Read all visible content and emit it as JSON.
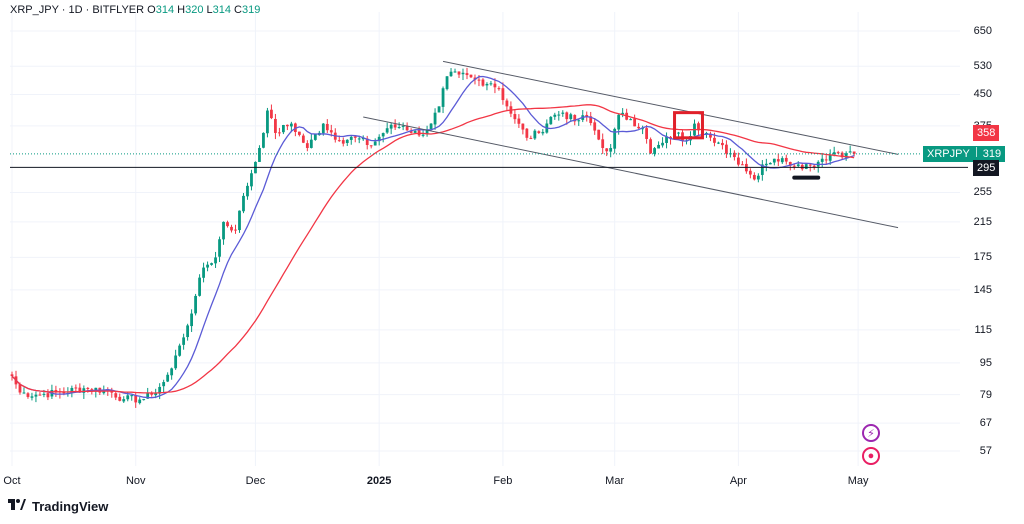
{
  "legend": {
    "symbol_line": "XRP_JPY · 1D · BITFLYER",
    "open_label": "O",
    "open": "314",
    "high_label": "H",
    "high": "320",
    "low_label": "L",
    "low": "314",
    "close_label": "C",
    "close": "319"
  },
  "brand": {
    "name": "TradingView",
    "icon": "tradingview-logo-icon"
  },
  "colors": {
    "up": "#089981",
    "down": "#f23645",
    "ma_fast": "#5b5bd6",
    "ma_slow": "#f23645",
    "box": "#e0202a"
  },
  "price_tags": {
    "symbol": "XRPJPY",
    "current": "319",
    "ma": "358",
    "support": "295"
  },
  "icons": [
    "lightning-icon",
    "record-icon"
  ],
  "chart_data": {
    "type": "candlestick",
    "title": "XRP_JPY · 1D · BITFLYER",
    "scale": "log",
    "ylim": [
      50,
      720
    ],
    "y_ticks": [
      650,
      530,
      450,
      375,
      255,
      215,
      175,
      145,
      115,
      95,
      79,
      67,
      57
    ],
    "x_ticks": [
      {
        "label": "Oct",
        "day": 0
      },
      {
        "label": "Nov",
        "day": 31
      },
      {
        "label": "Dec",
        "day": 61
      },
      {
        "label": "2025",
        "day": 92,
        "bold": true
      },
      {
        "label": "Feb",
        "day": 123
      },
      {
        "label": "Mar",
        "day": 151
      },
      {
        "label": "Apr",
        "day": 182
      },
      {
        "label": "May",
        "day": 212
      }
    ],
    "x_range_days": [
      -0.5,
      227
    ],
    "close_anchors": [
      [
        0,
        88
      ],
      [
        2,
        80
      ],
      [
        6,
        79
      ],
      [
        12,
        80
      ],
      [
        18,
        82
      ],
      [
        24,
        81
      ],
      [
        28,
        77
      ],
      [
        33,
        77
      ],
      [
        35,
        79
      ],
      [
        38,
        85
      ],
      [
        40,
        92
      ],
      [
        42,
        105
      ],
      [
        44,
        118
      ],
      [
        46,
        140
      ],
      [
        48,
        165
      ],
      [
        51,
        175
      ],
      [
        53,
        215
      ],
      [
        56,
        205
      ],
      [
        58,
        250
      ],
      [
        60,
        285
      ],
      [
        62,
        330
      ],
      [
        64,
        410
      ],
      [
        66,
        360
      ],
      [
        70,
        380
      ],
      [
        74,
        330
      ],
      [
        78,
        380
      ],
      [
        82,
        345
      ],
      [
        86,
        350
      ],
      [
        90,
        335
      ],
      [
        94,
        370
      ],
      [
        98,
        375
      ],
      [
        102,
        355
      ],
      [
        105,
        380
      ],
      [
        107,
        420
      ],
      [
        109,
        500
      ],
      [
        112,
        505
      ],
      [
        116,
        490
      ],
      [
        120,
        480
      ],
      [
        122,
        465
      ],
      [
        124,
        420
      ],
      [
        126,
        390
      ],
      [
        129,
        350
      ],
      [
        132,
        360
      ],
      [
        135,
        395
      ],
      [
        138,
        405
      ],
      [
        141,
        385
      ],
      [
        144,
        395
      ],
      [
        146,
        365
      ],
      [
        148,
        330
      ],
      [
        150,
        330
      ],
      [
        152,
        400
      ],
      [
        155,
        390
      ],
      [
        158,
        370
      ],
      [
        160,
        320
      ],
      [
        163,
        340
      ],
      [
        166,
        360
      ],
      [
        169,
        345
      ],
      [
        171,
        380
      ],
      [
        174,
        360
      ],
      [
        176,
        340
      ],
      [
        180,
        320
      ],
      [
        183,
        300
      ],
      [
        186,
        275
      ],
      [
        188,
        300
      ],
      [
        191,
        310
      ],
      [
        194,
        305
      ],
      [
        197,
        300
      ],
      [
        200,
        298
      ],
      [
        203,
        310
      ],
      [
        206,
        322
      ],
      [
        209,
        320
      ],
      [
        211,
        319
      ]
    ],
    "moving_averages": [
      {
        "name": "MA fast",
        "color": "#5b5bd6",
        "window": 10
      },
      {
        "name": "MA slow",
        "color": "#f23645",
        "window": 40
      }
    ],
    "annotations": [
      {
        "type": "trendline",
        "name": "channel-upper",
        "from": [
          108,
          545
        ],
        "to": [
          222,
          318
        ]
      },
      {
        "type": "trendline",
        "name": "channel-lower",
        "from": [
          88,
          395
        ],
        "to": [
          222,
          208
        ]
      },
      {
        "type": "hline",
        "name": "support-line",
        "price": 295
      },
      {
        "type": "box",
        "name": "resistance-box",
        "from": [
          166,
          350
        ],
        "to": [
          173,
          405
        ]
      },
      {
        "type": "segment",
        "name": "base-marker",
        "from": [
          196,
          278
        ],
        "to": [
          202,
          278
        ]
      }
    ],
    "last": {
      "open": 314,
      "high": 320,
      "low": 314,
      "close": 319
    }
  }
}
